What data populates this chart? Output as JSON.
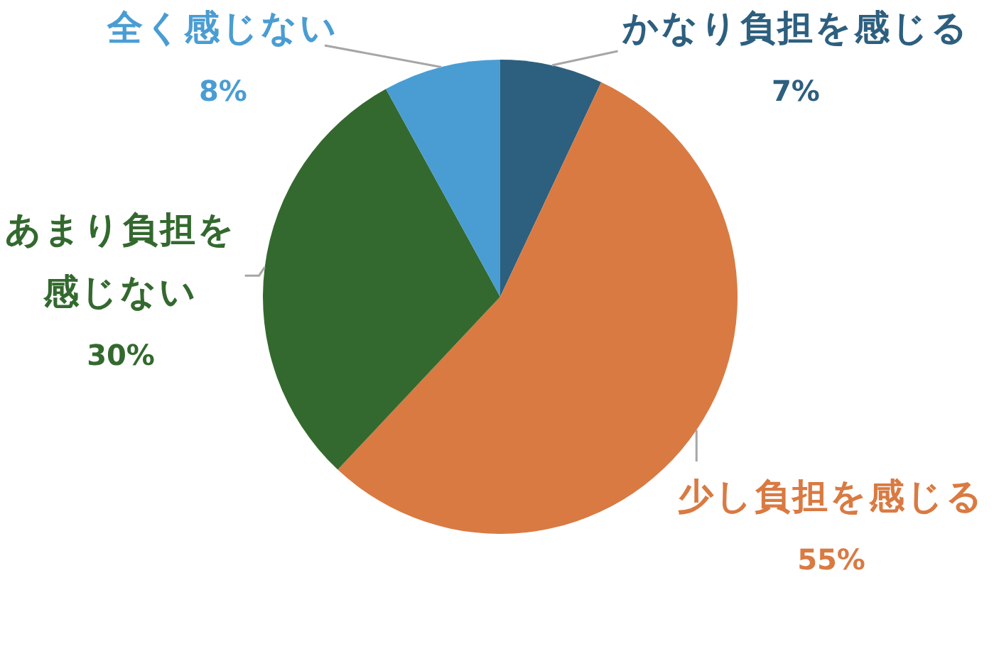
{
  "chart_data": {
    "type": "pie",
    "categories": [
      "かなり負担を感じる",
      "少し負担を感じる",
      "あまり負担を感じない",
      "全く感じない"
    ],
    "values": [
      7,
      55,
      30,
      8
    ],
    "colors": [
      "#2d5f7f",
      "#d97a42",
      "#33692e",
      "#4a9dd3"
    ],
    "value_labels": [
      "7%",
      "55%",
      "30%",
      "8%"
    ],
    "legend": false
  }
}
